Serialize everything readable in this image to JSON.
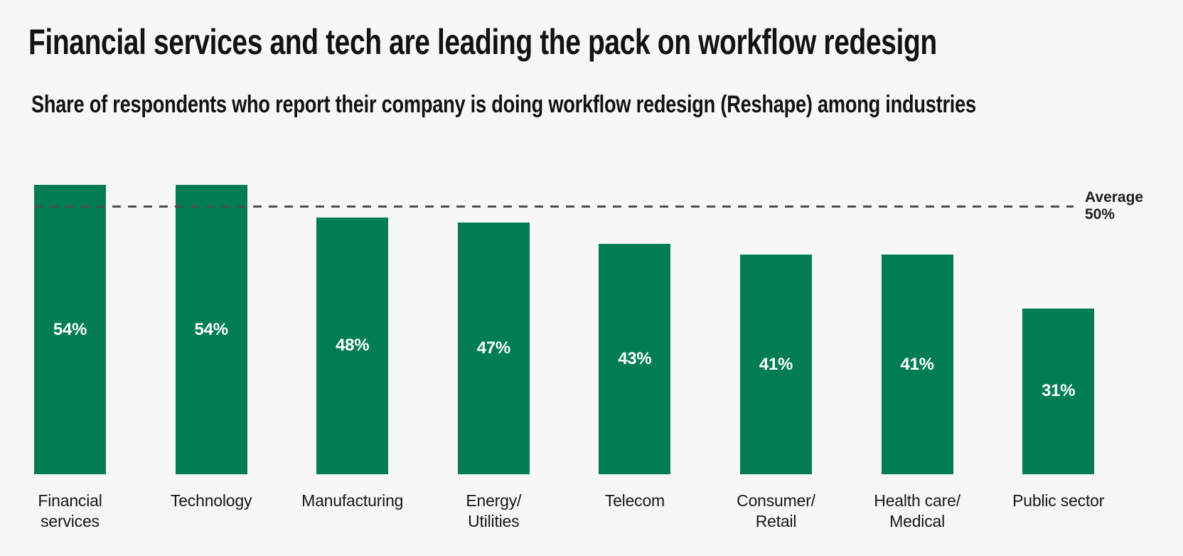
{
  "page": {
    "background_color": "#f7f7f7"
  },
  "header": {
    "title": "Financial services and tech are leading the pack on workflow redesign",
    "subtitle": "Share of respondents who report their company is doing workflow redesign (Reshape) among industries"
  },
  "chart_data": {
    "type": "bar",
    "title": "Financial services and tech are leading the pack on workflow redesign",
    "subtitle": "Share of respondents who report their company is doing workflow redesign (Reshape) among industries",
    "categories": [
      "Financial services",
      "Technology",
      "Manufacturing",
      "Energy/Utilities",
      "Telecom",
      "Consumer/Retail",
      "Health care/Medical",
      "Public sector"
    ],
    "category_label_lines": [
      [
        "Financial",
        "services"
      ],
      [
        "Technology"
      ],
      [
        "Manufacturing"
      ],
      [
        "Energy/",
        "Utilities"
      ],
      [
        "Telecom"
      ],
      [
        "Consumer/",
        "Retail"
      ],
      [
        "Health care/",
        "Medical"
      ],
      [
        "Public sector"
      ]
    ],
    "values": [
      54,
      54,
      48,
      47,
      43,
      41,
      41,
      31
    ],
    "value_labels": [
      "54%",
      "54%",
      "48%",
      "47%",
      "43%",
      "41%",
      "41%",
      "31%"
    ],
    "unit": "%",
    "ylim": [
      0,
      60
    ],
    "grid": false,
    "legend": false,
    "bar_color": "#007d53",
    "value_label_color": "#ffffff",
    "average_line": {
      "value": 50,
      "style": "dashed",
      "color": "#4d4d4d",
      "label_line1": "Average",
      "label_line2": "50%"
    }
  }
}
